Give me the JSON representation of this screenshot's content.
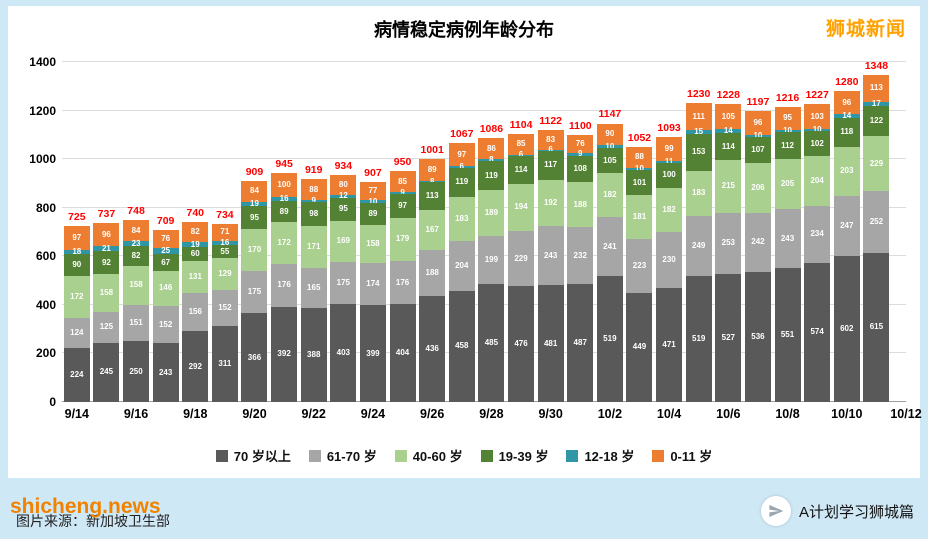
{
  "page": {
    "brand_top_right": "狮城新闻",
    "watermark": "shicheng.news",
    "source_note": "图片来源：新加坡卫生部",
    "brand_bottom_right": "A计划学习狮城篇"
  },
  "chart_data": {
    "type": "bar",
    "stacked": true,
    "title": "病情稳定病例年龄分布",
    "xlabel": "",
    "ylabel": "",
    "ylim": [
      0,
      1400
    ],
    "y_ticks": [
      0,
      200,
      400,
      600,
      800,
      1000,
      1200,
      1400
    ],
    "grid": true,
    "legend_position": "bottom",
    "total_label_color": "#ff0000",
    "x_labels_shown": [
      "9/14",
      "9/16",
      "9/18",
      "9/20",
      "9/22",
      "9/24",
      "9/26",
      "9/28",
      "9/30",
      "10/2",
      "10/4",
      "10/6",
      "10/8",
      "10/10",
      "10/12"
    ],
    "categories": [
      "9/14",
      "9/15",
      "9/16",
      "9/17",
      "9/18",
      "9/19",
      "9/20",
      "9/21",
      "9/22",
      "9/23",
      "9/24",
      "9/25",
      "9/26",
      "9/27",
      "9/28",
      "9/29",
      "9/30",
      "10/1",
      "10/2",
      "10/3",
      "10/4",
      "10/5",
      "10/6",
      "10/7",
      "10/8",
      "10/9",
      "10/10",
      "10/11"
    ],
    "series": [
      {
        "name": "70 岁以上",
        "color": "#595959",
        "values": [
          224,
          245,
          250,
          243,
          292,
          311,
          366,
          392,
          388,
          403,
          399,
          404,
          436,
          458,
          485,
          476,
          481,
          487,
          519,
          449,
          471,
          519,
          527,
          536,
          551,
          574,
          602,
          615
        ]
      },
      {
        "name": "61-70 岁",
        "color": "#a6a6a6",
        "values": [
          124,
          125,
          151,
          152,
          156,
          152,
          175,
          176,
          165,
          175,
          174,
          176,
          188,
          204,
          199,
          229,
          243,
          232,
          241,
          223,
          230,
          249,
          253,
          242,
          243,
          234,
          247,
          252
        ]
      },
      {
        "name": "40-60 岁",
        "color": "#a9d08e",
        "values": [
          172,
          158,
          158,
          146,
          131,
          129,
          170,
          172,
          171,
          169,
          158,
          179,
          167,
          183,
          189,
          194,
          192,
          188,
          182,
          181,
          182,
          183,
          215,
          206,
          205,
          204,
          203,
          229
        ]
      },
      {
        "name": "19-39 岁",
        "color": "#548235",
        "values": [
          90,
          92,
          82,
          67,
          60,
          55,
          95,
          89,
          98,
          95,
          89,
          97,
          113,
          119,
          119,
          114,
          117,
          108,
          105,
          101,
          100,
          153,
          114,
          107,
          112,
          102,
          118,
          122
        ]
      },
      {
        "name": "12-18 岁",
        "color": "#2e96a5",
        "values": [
          18,
          21,
          23,
          25,
          19,
          16,
          19,
          16,
          9,
          12,
          10,
          9,
          8,
          6,
          8,
          6,
          6,
          9,
          10,
          10,
          11,
          15,
          14,
          10,
          10,
          10,
          14,
          17
        ]
      },
      {
        "name": "0-11 岁",
        "color": "#ed7d31",
        "values": [
          97,
          96,
          84,
          76,
          82,
          71,
          84,
          100,
          88,
          80,
          77,
          85,
          89,
          97,
          86,
          85,
          83,
          76,
          90,
          88,
          99,
          111,
          105,
          96,
          95,
          103,
          96,
          113
        ]
      }
    ],
    "totals": [
      725,
      737,
      748,
      709,
      740,
      734,
      909,
      945,
      919,
      934,
      907,
      950,
      1001,
      1067,
      1086,
      1104,
      1122,
      1100,
      1147,
      1052,
      1093,
      1230,
      1228,
      1197,
      1216,
      1227,
      1280,
      1348
    ]
  }
}
